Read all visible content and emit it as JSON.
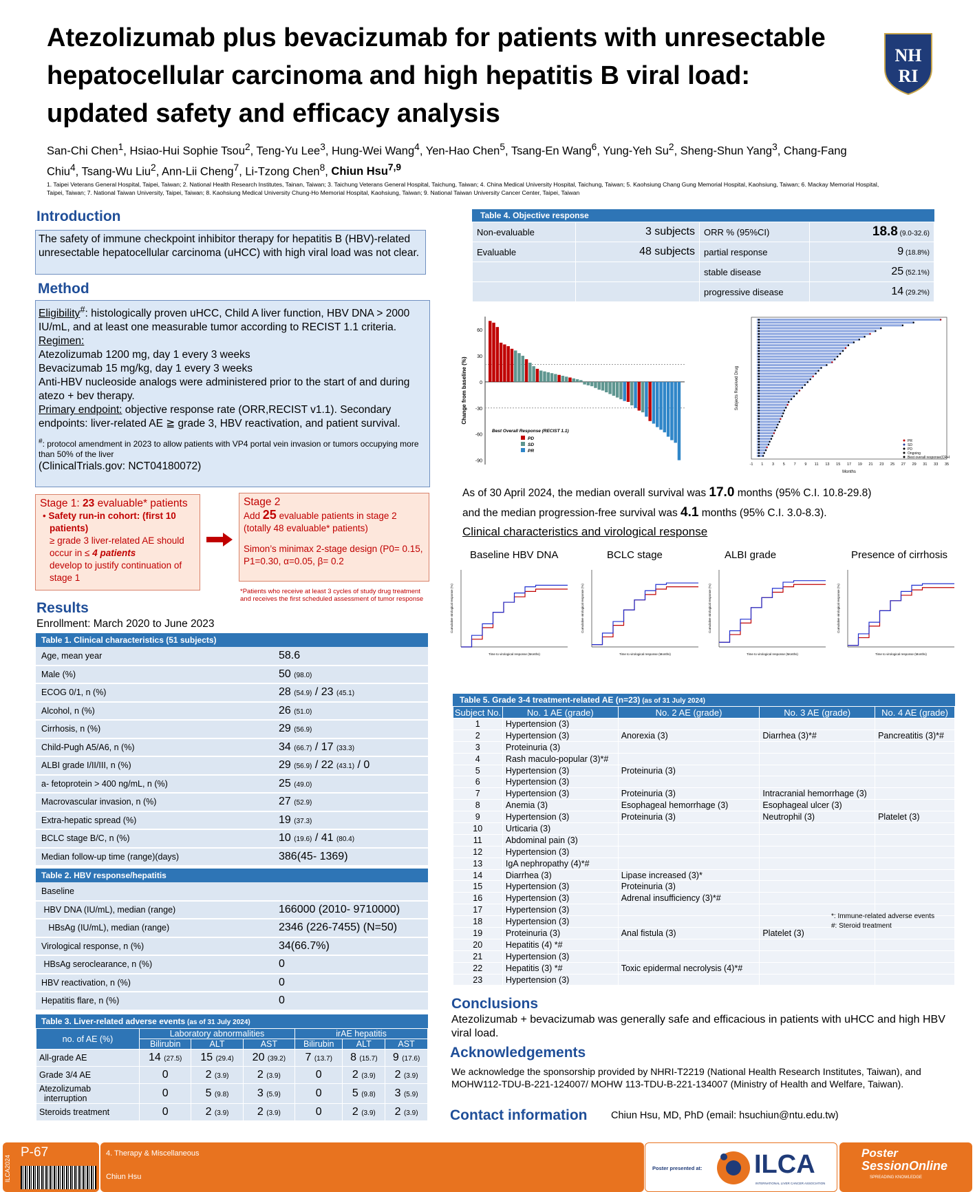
{
  "title": "Atezolizumab plus bevacizumab for patients with unresectable hepatocellular carcinoma and high hepatitis B viral load: updated safety and efficacy analysis",
  "logo_text": "NHRI",
  "authors_html": "San-Chi Chen<sup>1</sup>, Hsiao-Hui Sophie Tsou<sup>2</sup>, Teng-Yu Lee<sup>3</sup>, Hung-Wei Wang<sup>4</sup>, Yen-Hao Chen<sup>5</sup>, Tsang-En Wang<sup>6</sup>, Yung-Yeh Su<sup>2</sup>, Sheng-Shun Yang<sup>3</sup>, Chang-Fang Chiu<sup>4</sup>, Tsang-Wu Liu<sup>2</sup>, Ann-Lii Cheng<sup>7</sup>, Li-Tzong Chen<sup>8</sup>, <b>Chiun Hsu<sup>7,9</sup></b>",
  "affiliations": "1. Taipei Veterans General Hospital, Taipei, Taiwan; 2. National Health Research Institutes, Tainan, Taiwan; 3. Taichung Veterans General Hospital, Taichung, Taiwan; 4. China Medical University Hospital, Taichung, Taiwan;  5. Kaohsiung Chang Gung Memorial Hospital, Kaohsiung, Taiwan; 6. Mackay Memorial Hospital, Taipei, Taiwan; 7. National Taiwan University, Taipei, Taiwan; 8. Kaohsiung Medical University Chung-Ho Memorial Hospital, Kaohsiung, Taiwan; 9. National Taiwan University Cancer Center, Taipei, Taiwan",
  "intro": {
    "heading": "Introduction",
    "text": "The safety of immune checkpoint inhibitor therapy for hepatitis B (HBV)-related unresectable hepatocellular carcinoma (uHCC) with high viral load was not clear."
  },
  "method": {
    "heading": "Method",
    "eligibility_label": "Eligibility",
    "eligibility_text": ": histologically proven uHCC, Child A liver function, HBV DNA > 2000 IU/mL, and at least one measurable tumor according to RECIST 1.1 criteria.",
    "regimen_label": "Regimen:",
    "regimen_1": "Atezolizumab 1200 mg, day 1 every 3 weeks",
    "regimen_2": "Bevacizumab 15 mg/kg, day 1 every 3 weeks",
    "regimen_3": "Anti-HBV nucleoside analogs were administered prior to the start of and during atezo + bev therapy.",
    "endpoint_label": "Primary endpoint:",
    "endpoint_text": "  objective response rate (ORR,RECIST v1.1). Secondary endpoints: liver-related AE ≧  grade 3, HBV reactivation, and patient survival.",
    "footnote": ": protocol amendment in 2023 to allow patients with VP4 portal vein invasion or tumors occupying more than 50% of the liver",
    "clinicaltrials": "(ClinicalTrials.gov: NCT04180072)"
  },
  "stage1": {
    "title_a": "Stage 1: ",
    "title_n": "23",
    "title_b": " evaluable* patients",
    "bullet_a": "Safety run-in cohort: (",
    "bullet_b": "first 10 patients)",
    "line_c": "≥ grade 3 liver-related AE should occur in ≤ ",
    "line_n": "4 patients",
    "line_d": "develop to justify continuation of stage 1"
  },
  "stage2": {
    "title": "Stage 2",
    "add_a": "Add ",
    "add_n": "25",
    "add_b": " evaluable patients in stage 2 (totally 48 evaluable* patients)",
    "simon": "Simon’s minimax 2-stage design (P0= 0.15, P1=0.30, α=0.05, β= 0.2",
    "footnote": "*Patients who receive at least 3 cycles of study drug treatment and receives the first scheduled assessment of tumor response"
  },
  "results": {
    "heading": "Results",
    "enrollment": "Enrollment: March 2020 to June 2023"
  },
  "table1": {
    "title": "Table 1. Clinical characteristics (51 subjects)",
    "rows": [
      {
        "label": "Age, mean year",
        "html": "58.6"
      },
      {
        "label": "Male  (%)",
        "html": "50 <small>(98.0)</small>"
      },
      {
        "label": "ECOG 0/1, n (%)",
        "html": "28 <small>(54.9)</small> / 23 <small>(45.1)</small>"
      },
      {
        "label": "Alcohol, n (%)",
        "html": "26 <small>(51.0)</small>"
      },
      {
        "label": "Cirrhosis, n (%)",
        "html": "29 <small>(56.9)</small>"
      },
      {
        "label": "Child-Pugh A5/A6, n (%)",
        "html": "34 <small>(66.7)</small> / 17 <small>(33.3)</small>"
      },
      {
        "label": "ALBI grade I/II/III, n (%)",
        "html": "29 <small>(56.9)</small> / 22 <small>(43.1)</small> / 0"
      },
      {
        "label": "a- fetoprotein > 400 ng/mL, n (%)",
        "html": "25 <small>(49.0)</small>"
      },
      {
        "label": "Macrovascular invasion, n (%)",
        "html": "27 <small>(52.9)</small>"
      },
      {
        "label": "Extra-hepatic spread (%)",
        "html": "19 <small>(37.3)</small>"
      },
      {
        "label": "BCLC stage B/C, n (%)",
        "html": "10 <small>(19.6)</small> / 41 <small>(80.4)</small>"
      },
      {
        "label": "Median follow-up time (range)(days)",
        "html": "386(45- 1369)"
      }
    ]
  },
  "table2": {
    "title": "Table 2. HBV response/hepatitis",
    "rows": [
      {
        "label": "Baseline",
        "value": ""
      },
      {
        "label": " HBV DNA (IU/mL), median (range)",
        "value": "166000 (2010- 9710000)"
      },
      {
        "label": "   HBsAg (IU/mL), median (range)",
        "value": "2346 (226-7455) (N=50)"
      },
      {
        "label": "Virological response, n (%)",
        "value": "34(66.7%)"
      },
      {
        "label": " HBsAg seroclearance, n (%)",
        "value": "0"
      },
      {
        "label": "HBV reactivation, n (%)",
        "value": "0"
      },
      {
        "label": "Hepatitis flare, n (%)",
        "value": "0"
      }
    ]
  },
  "table3": {
    "title": "Table 3. Liver-related adverse events",
    "title_small": " (as of 31 July 2024)",
    "col0": "no. of AE (%)",
    "group1": "Laboratory abnormalities",
    "group2": "irAE hepatitis",
    "subcols": [
      "Bilirubin",
      "ALT",
      "AST",
      "Bilirubin",
      "ALT",
      "AST"
    ],
    "rows": [
      {
        "label": "All-grade AE",
        "cells": [
          "14 <small>(27.5)</small>",
          "15 <small>(29.4)</small>",
          "20 <small>(39.2)</small>",
          "7 <small>(13.7)</small>",
          "8 <small>(15.7)</small>",
          "9 <small>(17.6)</small>"
        ]
      },
      {
        "label": "Grade 3/4 AE",
        "cells": [
          "0",
          "2 <small>(3.9)</small>",
          "2 <small>(3.9)</small>",
          "0",
          "2 <small>(3.9)</small>",
          "2 <small>(3.9)</small>"
        ]
      },
      {
        "label": "Atezolizumab<br>&nbsp;&nbsp;interruption",
        "cells": [
          "0",
          "5 <small>(9.8)</small>",
          "3 <small>(5.9)</small>",
          "0",
          "5 <small>(9.8)</small>",
          "3 <small>(5.9)</small>"
        ]
      },
      {
        "label": "Steroids treatment",
        "cells": [
          "0",
          "2 <small>(3.9)</small>",
          "2 <small>(3.9)</small>",
          "0",
          "2 <small>(3.9)</small>",
          "2 <small>(3.9)</small>"
        ]
      }
    ]
  },
  "table4": {
    "title": "Table 4. Objective response",
    "nonevaluable_label": "Non-evaluable",
    "nonevaluable_value": "3 subjects",
    "evaluable_label": "Evaluable",
    "evaluable_value": "48 subjects",
    "orr_label": "ORR % (95%CI)",
    "orr_value": "18.8",
    "orr_ci": " (9.0-32.6)",
    "pr_label": "partial response",
    "pr_value": "9",
    "pr_pct": " (18.8%)",
    "sd_label": "stable disease",
    "sd_value": "25",
    "sd_pct": " (52.1%)",
    "pd_label": "progressive disease",
    "pd_value": "14",
    "pd_pct": " (29.2%)"
  },
  "chart_data": [
    {
      "type": "bar",
      "title": "",
      "ylabel": "Change from baseline (%)",
      "ylim": [
        -95,
        75
      ],
      "yticks": [
        60,
        30,
        0,
        -30,
        -60,
        -90
      ],
      "legend_title": "Best Overall Response (RECIST 1.1)",
      "legend": [
        "PD",
        "SD",
        "PR"
      ],
      "colors": {
        "PD": "#c00000",
        "SD": "#5f9690",
        "PR": "#2f86c8"
      },
      "values": [
        70,
        68,
        63,
        45,
        43,
        41,
        38,
        36,
        33,
        30,
        26,
        22,
        18,
        15,
        13,
        12,
        11,
        10,
        9,
        8,
        7,
        6,
        5,
        4,
        3,
        2,
        -3,
        -4,
        -5,
        -7,
        -9,
        -10,
        -12,
        -14,
        -16,
        -18,
        -20,
        -22,
        -23,
        -27,
        -30,
        -33,
        -35,
        -40,
        -45,
        -48,
        -52,
        -55,
        -58,
        -63,
        -67,
        -70,
        -90
      ],
      "categories_response": [
        "PD",
        "PD",
        "PD",
        "PD",
        "PD",
        "PD",
        "PD",
        "SD",
        "SD",
        "SD",
        "PD",
        "SD",
        "SD",
        "PD",
        "SD",
        "SD",
        "SD",
        "SD",
        "SD",
        "PD",
        "SD",
        "SD",
        "PD",
        "SD",
        "SD",
        "SD",
        "SD",
        "SD",
        "SD",
        "SD",
        "SD",
        "SD",
        "SD",
        "SD",
        "SD",
        "SD",
        "SD",
        "PR",
        "PD",
        "SD",
        "PR",
        "PD",
        "SD",
        "PR",
        "PD",
        "PR",
        "PR",
        "PR",
        "PR",
        "PR",
        "PR",
        "PR",
        "PR"
      ]
    },
    {
      "type": "bar",
      "title": "",
      "xlabel": "Months",
      "ylabel": "Subjects Received Drug",
      "xticks": [
        -1,
        1,
        3,
        5,
        7,
        9,
        11,
        13,
        15,
        17,
        19,
        21,
        23,
        25,
        27,
        29,
        31,
        33,
        35
      ],
      "legend": [
        "PR",
        "SD",
        "PD",
        "Ongoing",
        "Best overall response(CR+PR)"
      ],
      "durations": [
        34,
        29,
        27,
        23,
        22,
        21,
        20,
        19,
        18,
        17,
        16.5,
        16,
        15.5,
        15,
        14.5,
        14,
        13,
        12,
        11.5,
        11,
        10.5,
        10,
        9.5,
        9,
        8.5,
        8,
        7.5,
        7,
        6.5,
        6,
        5.8,
        5.5,
        5.2,
        5,
        4.8,
        4.5,
        4.3,
        4,
        3.8,
        3.5,
        3.3,
        3,
        2.8,
        2.5,
        2.3,
        2,
        1.8,
        1.5,
        1.3
      ]
    },
    {
      "type": "line",
      "title": "Baseline HBV DNA",
      "xlabel": "Time to virological response (Months)",
      "ylabel": "Cumulative virological response (%)"
    },
    {
      "type": "line",
      "title": "BCLC stage",
      "xlabel": "Time to virological response (Months)",
      "ylabel": "Cumulative virological response (%)"
    },
    {
      "type": "line",
      "title": "ALBI grade",
      "xlabel": "Time to virological response (Months)",
      "ylabel": "Cumulative virological response (%)"
    },
    {
      "type": "line",
      "title": "Presence of cirrhosis",
      "xlabel": "Time to virological response (Months)",
      "ylabel": "Cumulative virological response (%)"
    }
  ],
  "survival": {
    "line1_a": "As of 30 April 2024, the median overall survival was ",
    "line1_n": "17.0",
    "line1_b": " months (95% C.I. 10.8-29.8)",
    "line2_a": "and the median progression-free survival was ",
    "line2_n": "4.1",
    "line2_b": " months (95% C.I. 3.0-8.3)."
  },
  "clinical_heading": "Clinical characteristics and virological response",
  "km_titles": [
    "Baseline HBV DNA",
    "BCLC stage",
    "ALBI grade",
    "Presence of cirrhosis"
  ],
  "table5": {
    "title": "Table 5. Grade 3-4 treatment-related AE (n=23)",
    "title_small": " (as of 31 July 2024)",
    "headers": [
      "Subject No.",
      "No. 1 AE (grade)",
      "No. 2 AE (grade)",
      "No. 3 AE (grade)",
      "No. 4 AE (grade)"
    ],
    "rows": [
      [
        "1",
        "Hypertension (3)",
        "",
        "",
        ""
      ],
      [
        "2",
        "Hypertension (3)",
        "Anorexia (3)",
        "Diarrhea (3)*#",
        "Pancreatitis (3)*#"
      ],
      [
        "3",
        "Proteinuria (3)",
        "",
        "",
        ""
      ],
      [
        "4",
        "Rash maculo-popular (3)*#",
        "",
        "",
        ""
      ],
      [
        "5",
        "Hypertension (3)",
        "Proteinuria (3)",
        "",
        ""
      ],
      [
        "6",
        "Hypertension (3)",
        "",
        "",
        ""
      ],
      [
        "7",
        "Hypertension (3)",
        "Proteinuria (3)",
        "Intracranial hemorrhage (3)",
        ""
      ],
      [
        "8",
        "Anemia (3)",
        "Esophageal hemorrhage (3)",
        "Esophageal ulcer (3)",
        ""
      ],
      [
        "9",
        "Hypertension (3)",
        "Proteinuria (3)",
        "Neutrophil (3)",
        "Platelet (3)"
      ],
      [
        "10",
        "Urticaria (3)",
        "",
        "",
        ""
      ],
      [
        "11",
        "Abdominal pain (3)",
        "",
        "",
        ""
      ],
      [
        "12",
        "Hypertension (3)",
        "",
        "",
        ""
      ],
      [
        "13",
        "IgA nephropathy (4)*#",
        "",
        "",
        ""
      ],
      [
        "14",
        "Diarrhea (3)",
        "Lipase increased (3)*",
        "",
        ""
      ],
      [
        "15",
        "Hypertension (3)",
        "Proteinuria (3)",
        "",
        ""
      ],
      [
        "16",
        "Hypertension (3)",
        "Adrenal insufficiency (3)*#",
        "",
        ""
      ],
      [
        "17",
        "Hypertension (3)",
        "",
        "",
        ""
      ],
      [
        "18",
        "Hypertension (3)",
        "",
        "",
        ""
      ],
      [
        "19",
        "Proteinuria (3)",
        "Anal fistula (3)",
        "Platelet (3)",
        ""
      ],
      [
        "20",
        "Hepatitis (4) *#",
        "",
        "",
        ""
      ],
      [
        "21",
        "Hypertension (3)",
        "",
        "",
        ""
      ],
      [
        "22",
        "Hepatitis (3) *#",
        "Toxic epidermal necrolysis (4)*#",
        "",
        ""
      ],
      [
        "23",
        "Hypertension (3)",
        "",
        "",
        ""
      ]
    ],
    "note1": "*: Immune-related adverse events",
    "note2": "#: Steroid treatment"
  },
  "conclusions": {
    "heading": "Conclusions",
    "text": "Atezolizumab + bevacizumab was generally safe and efficacious in patients with uHCC and high HBV viral load."
  },
  "ack": {
    "heading": "Acknowledgements",
    "text": "We acknowledge the sponsorship provided by NHRI-T2219 (National Health Research Institutes, Taiwan), and MOHW112-TDU-B-221-124007/ MOHW 113-TDU-B-221-134007  (Ministry of Health and Welfare, Taiwan)."
  },
  "contact": {
    "heading": "Contact information",
    "text": "Chiun Hsu, MD, PhD (email: hsuchiun@ntu.edu.tw)"
  },
  "footer": {
    "side_label": "ILCA2024",
    "poster_id": "P-67",
    "category": "4. Therapy & Miscellaneous",
    "presenter": "Chiun Hsu",
    "presented_at": "Poster presented at:",
    "ilca": "ILCA",
    "ilca_sub": "INTERNATIONAL LIVER CANCER ASSOCIATION",
    "pso_1": "Poster",
    "pso_2": "SessionOnline",
    "pso_sub": "SPREADING KNOWLEDGE"
  }
}
